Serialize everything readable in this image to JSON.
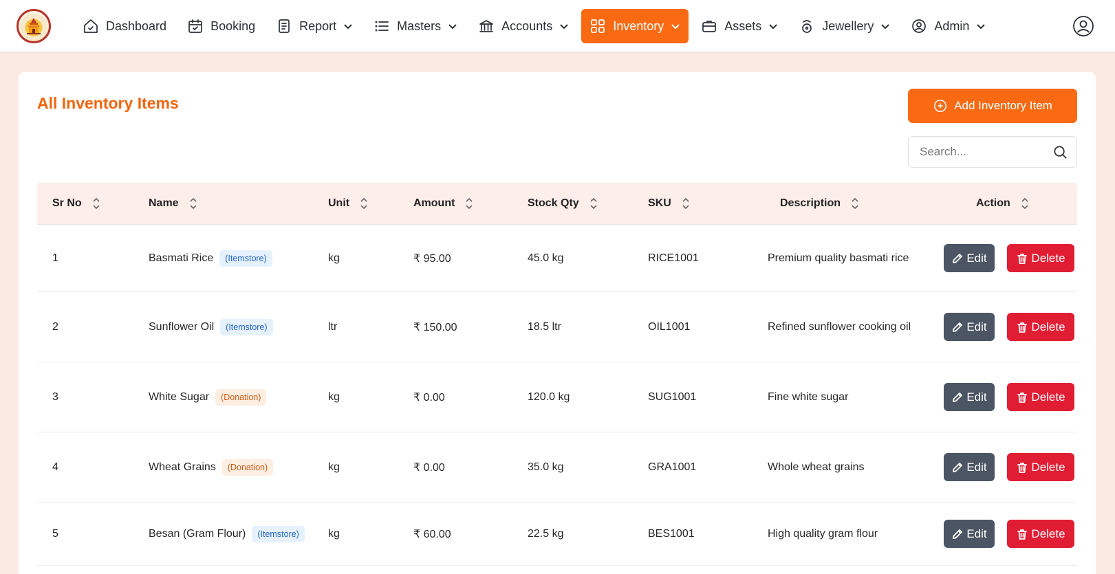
{
  "nav": {
    "items": [
      {
        "label": "Dashboard",
        "icon": "home-icon",
        "dropdown": false,
        "active": false
      },
      {
        "label": "Booking",
        "icon": "calendar-icon",
        "dropdown": false,
        "active": false
      },
      {
        "label": "Report",
        "icon": "document-icon",
        "dropdown": true,
        "active": false
      },
      {
        "label": "Masters",
        "icon": "list-icon",
        "dropdown": true,
        "active": false
      },
      {
        "label": "Accounts",
        "icon": "bank-icon",
        "dropdown": true,
        "active": false
      },
      {
        "label": "Inventory",
        "icon": "grid-icon",
        "dropdown": true,
        "active": true
      },
      {
        "label": "Assets",
        "icon": "briefcase-icon",
        "dropdown": true,
        "active": false
      },
      {
        "label": "Jewellery",
        "icon": "ring-icon",
        "dropdown": true,
        "active": false
      },
      {
        "label": "Admin",
        "icon": "user-circle-icon",
        "dropdown": true,
        "active": false
      }
    ],
    "active_color": "#f96a12"
  },
  "page": {
    "title": "All Inventory Items",
    "add_button_label": "Add Inventory Item",
    "search_placeholder": "Search..."
  },
  "table": {
    "columns": [
      "Sr No",
      "Name",
      "Unit",
      "Amount",
      "Stock Qty",
      "SKU",
      "Description",
      "Action"
    ],
    "rows": [
      {
        "sr": "1",
        "name": "Basmati Rice",
        "tag": "(Itemstore)",
        "unit": "kg",
        "amount": "₹ 95.00",
        "qty": "45.0 kg",
        "sku": "RICE1001",
        "description": "Premium quality basmati rice"
      },
      {
        "sr": "2",
        "name": "Sunflower Oil",
        "tag": "(Itemstore)",
        "unit": "ltr",
        "amount": "₹ 150.00",
        "qty": "18.5 ltr",
        "sku": "OIL1001",
        "description": "Refined sunflower cooking oil"
      },
      {
        "sr": "3",
        "name": "White Sugar",
        "tag": "(Donation)",
        "unit": "kg",
        "amount": "₹ 0.00",
        "qty": "120.0 kg",
        "sku": "SUG1001",
        "description": "Fine white sugar"
      },
      {
        "sr": "4",
        "name": "Wheat Grains",
        "tag": "(Donation)",
        "unit": "kg",
        "amount": "₹ 0.00",
        "qty": "35.0 kg",
        "sku": "GRA1001",
        "description": "Whole wheat grains"
      },
      {
        "sr": "5",
        "name": "Besan (Gram Flour)",
        "tag": "(Itemstore)",
        "unit": "kg",
        "amount": "₹ 60.00",
        "qty": "22.5 kg",
        "sku": "BES1001",
        "description": "High quality gram flour"
      }
    ],
    "edit_label": "Edit",
    "delete_label": "Delete"
  }
}
